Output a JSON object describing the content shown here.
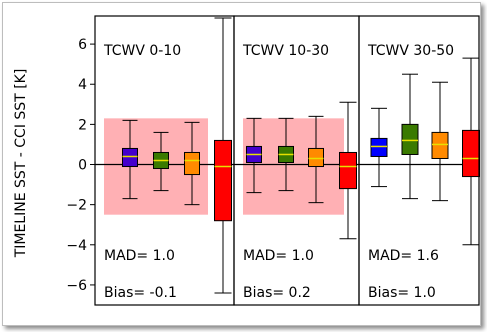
{
  "chart_data": {
    "type": "box",
    "ylabel": "TIMELINE SST - CCI SST [K]",
    "ylim": [
      -7,
      7.4
    ],
    "yticks": [
      -6,
      -4,
      -2,
      0,
      2,
      4,
      6
    ],
    "ytick_labels": [
      "−6",
      "−4",
      "−2",
      "0",
      "2",
      "4",
      "6"
    ],
    "panels": [
      {
        "title": "TCWV 0-10",
        "mad_label": "MAD= 1.0",
        "bias_label": "Bias= -0.1",
        "shaded_band": [
          -2.5,
          2.3
        ],
        "boxes": [
          {
            "color": "#4400cc",
            "whisker_low": -1.7,
            "q1": -0.1,
            "median": 0.4,
            "q3": 0.8,
            "whisker_high": 2.2
          },
          {
            "color": "#3a7a00",
            "whisker_low": -1.3,
            "q1": -0.2,
            "median": 0.2,
            "q3": 0.6,
            "whisker_high": 1.6
          },
          {
            "color": "#ff8a00",
            "whisker_low": -2.0,
            "q1": -0.5,
            "median": 0.2,
            "q3": 0.6,
            "whisker_high": 2.1
          },
          {
            "color": "#ff0000",
            "whisker_low": -6.4,
            "q1": -2.8,
            "median": -0.1,
            "q3": 1.2,
            "whisker_high": 7.3
          }
        ]
      },
      {
        "title": "TCWV 10-30",
        "mad_label": "MAD= 1.0",
        "bias_label": "Bias= 0.2",
        "shaded_band": [
          -2.5,
          2.3
        ],
        "boxes": [
          {
            "color": "#4400cc",
            "whisker_low": -1.4,
            "q1": 0.1,
            "median": 0.5,
            "q3": 0.9,
            "whisker_high": 2.3
          },
          {
            "color": "#3a7a00",
            "whisker_low": -1.3,
            "q1": 0.1,
            "median": 0.5,
            "q3": 0.9,
            "whisker_high": 2.3
          },
          {
            "color": "#ff8a00",
            "whisker_low": -1.9,
            "q1": -0.1,
            "median": 0.3,
            "q3": 0.8,
            "whisker_high": 2.4
          },
          {
            "color": "#ff0000",
            "whisker_low": -3.7,
            "q1": -1.2,
            "median": -0.1,
            "q3": 0.6,
            "whisker_high": 3.1
          }
        ]
      },
      {
        "title": "TCWV 30-50",
        "mad_label": "MAD= 1.6",
        "bias_label": "Bias= 1.0",
        "boxes": [
          {
            "color": "#0000ff",
            "whisker_low": -1.1,
            "q1": 0.4,
            "median": 0.9,
            "q3": 1.3,
            "whisker_high": 2.8
          },
          {
            "color": "#3a7a00",
            "whisker_low": -1.7,
            "q1": 0.5,
            "median": 1.2,
            "q3": 2.0,
            "whisker_high": 4.5
          },
          {
            "color": "#ff8a00",
            "whisker_low": -1.8,
            "q1": 0.3,
            "median": 1.0,
            "q3": 1.6,
            "whisker_high": 4.1
          },
          {
            "color": "#ff0000",
            "whisker_low": -4.0,
            "q1": -0.6,
            "median": 0.3,
            "q3": 1.7,
            "whisker_high": 5.3
          }
        ]
      }
    ]
  }
}
